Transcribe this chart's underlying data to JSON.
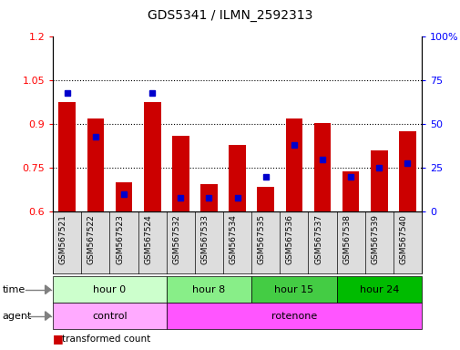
{
  "title": "GDS5341 / ILMN_2592313",
  "samples": [
    "GSM567521",
    "GSM567522",
    "GSM567523",
    "GSM567524",
    "GSM567532",
    "GSM567533",
    "GSM567534",
    "GSM567535",
    "GSM567536",
    "GSM567537",
    "GSM567538",
    "GSM567539",
    "GSM567540"
  ],
  "red_values": [
    0.975,
    0.92,
    0.7,
    0.975,
    0.86,
    0.695,
    0.83,
    0.685,
    0.92,
    0.905,
    0.74,
    0.81,
    0.875
  ],
  "blue_values": [
    68,
    43,
    10,
    68,
    8,
    8,
    8,
    20,
    38,
    30,
    20,
    25,
    28
  ],
  "ylim_left": [
    0.6,
    1.2
  ],
  "ylim_right": [
    0,
    100
  ],
  "yticks_left": [
    0.6,
    0.75,
    0.9,
    1.05,
    1.2
  ],
  "yticks_right": [
    0,
    25,
    50,
    75,
    100
  ],
  "ytick_labels_left": [
    "0.6",
    "0.75",
    "0.9",
    "1.05",
    "1.2"
  ],
  "ytick_labels_right": [
    "0",
    "25",
    "50",
    "75",
    "100%"
  ],
  "hlines": [
    0.75,
    0.9,
    1.05
  ],
  "time_groups": [
    {
      "label": "hour 0",
      "start": 0,
      "end": 4,
      "color": "#ccffcc"
    },
    {
      "label": "hour 8",
      "start": 4,
      "end": 7,
      "color": "#88ee88"
    },
    {
      "label": "hour 15",
      "start": 7,
      "end": 10,
      "color": "#44cc44"
    },
    {
      "label": "hour 24",
      "start": 10,
      "end": 13,
      "color": "#00bb00"
    }
  ],
  "agent_groups": [
    {
      "label": "control",
      "start": 0,
      "end": 4,
      "color": "#ffaaff"
    },
    {
      "label": "rotenone",
      "start": 4,
      "end": 13,
      "color": "#ff55ff"
    }
  ],
  "bar_color": "#cc0000",
  "marker_color": "#0000cc",
  "tick_bg_color": "#dddddd"
}
